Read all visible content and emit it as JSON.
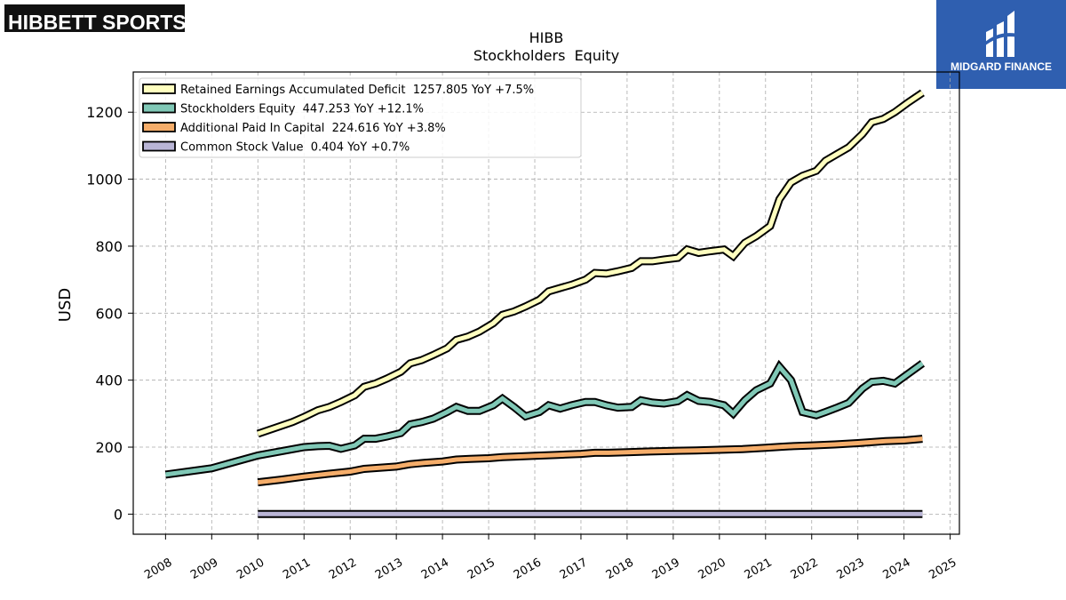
{
  "brand": {
    "logo_text": "HIBBETT SPORTS",
    "logo_mark": "®"
  },
  "partner": {
    "name": "MIDGARD FINANCE",
    "icon": "midgard-logo-icon"
  },
  "chart_data": {
    "type": "line",
    "title": "HIBB",
    "subtitle": "Stockholders  Equity",
    "ylabel": "USD",
    "xlabel": "",
    "ylim": [
      -60,
      1320
    ],
    "xlim": [
      2007.3,
      2025.2
    ],
    "yticks": [
      0,
      200,
      400,
      600,
      800,
      1000,
      1200
    ],
    "xticks": [
      2008,
      2009,
      2010,
      2011,
      2012,
      2013,
      2014,
      2015,
      2016,
      2017,
      2018,
      2019,
      2020,
      2021,
      2022,
      2023,
      2024,
      2025
    ],
    "grid": true,
    "legend_position": "top-left",
    "series": [
      {
        "name": "Retained Earnings Accumulated Deficit",
        "legend_label": "Retained Earnings Accumulated Deficit  1257.805 YoY +7.5%",
        "color": "#ffffbf",
        "x": [
          2010.0,
          2010.75,
          2011.0,
          2011.3,
          2011.55,
          2011.8,
          2012.1,
          2012.3,
          2012.55,
          2012.8,
          2013.1,
          2013.3,
          2013.55,
          2013.8,
          2014.1,
          2014.3,
          2014.55,
          2014.8,
          2015.1,
          2015.3,
          2015.55,
          2015.8,
          2016.1,
          2016.3,
          2016.55,
          2016.8,
          2017.1,
          2017.3,
          2017.55,
          2017.8,
          2018.1,
          2018.3,
          2018.55,
          2018.8,
          2019.1,
          2019.3,
          2019.55,
          2019.8,
          2020.1,
          2020.3,
          2020.55,
          2020.8,
          2021.1,
          2021.3,
          2021.55,
          2021.8,
          2022.1,
          2022.3,
          2022.55,
          2022.8,
          2023.1,
          2023.3,
          2023.55,
          2023.8,
          2024.1,
          2024.4
        ],
        "values": [
          240,
          275,
          290,
          310,
          320,
          335,
          355,
          380,
          390,
          405,
          425,
          450,
          460,
          475,
          495,
          520,
          530,
          545,
          570,
          595,
          605,
          620,
          640,
          665,
          675,
          685,
          700,
          720,
          718,
          725,
          735,
          755,
          755,
          760,
          765,
          790,
          780,
          785,
          790,
          770,
          810,
          830,
          860,
          940,
          990,
          1010,
          1025,
          1055,
          1075,
          1095,
          1135,
          1170,
          1180,
          1200,
          1230,
          1258
        ]
      },
      {
        "name": "Stockholders Equity",
        "legend_label": "Stockholders Equity  447.253 YoY +12.1%",
        "color": "#80c8b6",
        "x": [
          2008.0,
          2009.0,
          2010.0,
          2011.0,
          2011.3,
          2011.55,
          2011.8,
          2012.1,
          2012.3,
          2012.55,
          2012.8,
          2013.1,
          2013.3,
          2013.55,
          2013.8,
          2014.1,
          2014.3,
          2014.55,
          2014.8,
          2015.1,
          2015.3,
          2015.55,
          2015.8,
          2016.1,
          2016.3,
          2016.55,
          2016.8,
          2017.1,
          2017.3,
          2017.55,
          2017.8,
          2018.1,
          2018.3,
          2018.55,
          2018.8,
          2019.1,
          2019.3,
          2019.55,
          2019.8,
          2020.1,
          2020.3,
          2020.55,
          2020.8,
          2021.1,
          2021.3,
          2021.55,
          2021.8,
          2022.1,
          2022.3,
          2022.55,
          2022.8,
          2023.1,
          2023.3,
          2023.55,
          2023.8,
          2024.1,
          2024.4
        ],
        "values": [
          118,
          137,
          175,
          200,
          203,
          204,
          195,
          205,
          225,
          225,
          232,
          242,
          268,
          275,
          285,
          305,
          320,
          308,
          308,
          325,
          345,
          320,
          292,
          305,
          325,
          315,
          325,
          335,
          335,
          325,
          318,
          320,
          340,
          333,
          330,
          337,
          355,
          338,
          335,
          325,
          300,
          340,
          370,
          390,
          440,
          400,
          305,
          295,
          305,
          318,
          332,
          375,
          395,
          398,
          390,
          420,
          450
        ]
      },
      {
        "name": "Additional Paid In Capital",
        "legend_label": "Additional Paid In Capital  224.616 YoY +3.8%",
        "color": "#f5ad6a",
        "x": [
          2010.0,
          2010.5,
          2011.0,
          2011.5,
          2012.0,
          2012.3,
          2012.6,
          2013.0,
          2013.3,
          2013.6,
          2014.0,
          2014.3,
          2014.6,
          2015.0,
          2015.3,
          2015.6,
          2016.0,
          2016.5,
          2017.0,
          2017.3,
          2017.6,
          2018.0,
          2018.5,
          2019.0,
          2019.5,
          2020.0,
          2020.5,
          2021.0,
          2021.3,
          2021.6,
          2022.0,
          2022.5,
          2023.0,
          2023.3,
          2023.6,
          2024.0,
          2024.4
        ],
        "values": [
          95,
          103,
          112,
          120,
          127,
          135,
          138,
          142,
          149,
          153,
          157,
          163,
          165,
          167,
          170,
          172,
          174,
          177,
          180,
          183,
          183,
          185,
          187,
          189,
          190,
          192,
          194,
          198,
          201,
          203,
          205,
          208,
          212,
          215,
          218,
          220,
          225
        ]
      },
      {
        "name": "Common Stock Value",
        "legend_label": "Common Stock Value  0.404 YoY +0.7%",
        "color": "#b9b5d6",
        "x": [
          2010.0,
          2024.4
        ],
        "values": [
          0.4,
          0.4
        ]
      }
    ]
  }
}
